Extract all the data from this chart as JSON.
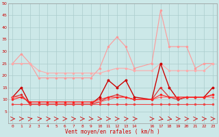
{
  "xlabel": "Vent moyen/en rafales ( km/h )",
  "xlim": [
    -0.5,
    23.5
  ],
  "ylim": [
    0,
    50
  ],
  "yticks": [
    5,
    10,
    15,
    20,
    25,
    30,
    35,
    40,
    45,
    50
  ],
  "xtick_pos": [
    0,
    1,
    2,
    3,
    4,
    5,
    6,
    7,
    8,
    9,
    10,
    11,
    12,
    13,
    14,
    16,
    17,
    18,
    19,
    20,
    21,
    22,
    23
  ],
  "xtick_labels": [
    "0",
    "1",
    "2",
    "3",
    "4",
    "5",
    "6",
    "7",
    "8",
    "9",
    "10",
    "11",
    "12",
    "13",
    "14",
    "16",
    "17",
    "18",
    "19",
    "20",
    "21",
    "22",
    "23"
  ],
  "background_color": "#cce8e8",
  "grid_color": "#aacccc",
  "series": [
    {
      "x": [
        0,
        1,
        2,
        3,
        4,
        5,
        6,
        7,
        8,
        9,
        10,
        11,
        12,
        13,
        14,
        16,
        17,
        18,
        19,
        20,
        21,
        22,
        23
      ],
      "y": [
        25,
        29,
        25,
        19,
        19,
        19,
        19,
        19,
        19,
        19,
        23,
        32,
        36,
        32,
        23,
        25,
        47,
        32,
        32,
        32,
        23,
        25,
        25
      ],
      "color": "#ff9999",
      "linewidth": 0.8,
      "marker": "o",
      "markersize": 1.5
    },
    {
      "x": [
        0,
        1,
        2,
        3,
        4,
        5,
        6,
        7,
        8,
        9,
        10,
        11,
        12,
        13,
        14,
        16,
        17,
        18,
        19,
        20,
        21,
        22,
        23
      ],
      "y": [
        25,
        25,
        25,
        22,
        21,
        21,
        21,
        21,
        21,
        21,
        21,
        22,
        23,
        23,
        22,
        22,
        25,
        22,
        22,
        22,
        22,
        22,
        25
      ],
      "color": "#ffaaaa",
      "linewidth": 0.8,
      "marker": "o",
      "markersize": 1.5
    },
    {
      "x": [
        0,
        1,
        2,
        3,
        4,
        5,
        6,
        7,
        8,
        9,
        10,
        11,
        12,
        13,
        14,
        16,
        17,
        18,
        19,
        20,
        21,
        22,
        23
      ],
      "y": [
        11,
        15,
        8,
        8,
        8,
        8,
        8,
        8,
        8,
        8,
        11,
        18,
        15,
        18,
        11,
        10,
        25,
        15,
        10,
        11,
        11,
        11,
        15
      ],
      "color": "#cc0000",
      "linewidth": 1.0,
      "marker": "o",
      "markersize": 1.8
    },
    {
      "x": [
        0,
        1,
        2,
        3,
        4,
        5,
        6,
        7,
        8,
        9,
        10,
        11,
        12,
        13,
        14,
        16,
        17,
        18,
        19,
        20,
        21,
        22,
        23
      ],
      "y": [
        11,
        12,
        8,
        8,
        8,
        8,
        8,
        8,
        8,
        8,
        9,
        11,
        12,
        11,
        10,
        10,
        15,
        11,
        10,
        11,
        11,
        11,
        12
      ],
      "color": "#dd3333",
      "linewidth": 0.9,
      "marker": "o",
      "markersize": 1.5
    },
    {
      "x": [
        0,
        1,
        2,
        3,
        4,
        5,
        6,
        7,
        8,
        9,
        10,
        11,
        12,
        13,
        14,
        16,
        17,
        18,
        19,
        20,
        21,
        22,
        23
      ],
      "y": [
        11,
        11,
        9,
        9,
        9,
        9,
        9,
        9,
        9,
        9,
        9,
        10,
        11,
        11,
        10,
        10,
        11,
        11,
        11,
        11,
        11,
        11,
        11
      ],
      "color": "#ff5555",
      "linewidth": 0.7,
      "marker": "o",
      "markersize": 1.2
    },
    {
      "x": [
        0,
        1,
        2,
        3,
        4,
        5,
        6,
        7,
        8,
        9,
        10,
        11,
        12,
        13,
        14,
        16,
        17,
        18,
        19,
        20,
        21,
        22,
        23
      ],
      "y": [
        8,
        8,
        8,
        8,
        8,
        8,
        8,
        8,
        8,
        8,
        8,
        8,
        8,
        8,
        8,
        8,
        8,
        8,
        8,
        8,
        8,
        8,
        8
      ],
      "color": "#ee4444",
      "linewidth": 0.8,
      "marker": "o",
      "markersize": 1.5
    },
    {
      "x": [
        0,
        1,
        2,
        3,
        4,
        5,
        6,
        7,
        8,
        9,
        10,
        11,
        12,
        13,
        14,
        16,
        17,
        18,
        19,
        20,
        21,
        22,
        23
      ],
      "y": [
        10,
        11,
        9,
        9,
        9,
        9,
        9,
        9,
        9,
        9,
        10,
        11,
        11,
        11,
        10,
        10,
        12,
        11,
        11,
        11,
        11,
        11,
        12
      ],
      "color": "#ff2222",
      "linewidth": 0.8,
      "marker": "o",
      "markersize": 1.5
    }
  ],
  "arrows_x": [
    0,
    1,
    2,
    3,
    4,
    5,
    6,
    7,
    8,
    9,
    10,
    11,
    12,
    13,
    14,
    16,
    17,
    18,
    19,
    20,
    21,
    22,
    23
  ],
  "arrows_y": [
    2,
    2,
    2,
    2,
    2,
    2,
    2,
    2,
    2,
    2,
    2,
    2,
    2,
    2,
    2,
    2,
    2,
    2,
    2,
    2,
    2,
    2,
    2
  ],
  "arrows_dx": [
    0.3,
    0.3,
    0.3,
    0.4,
    0.4,
    0.3,
    0.3,
    0.3,
    0.3,
    0.3,
    0.3,
    0.3,
    0.3,
    0.35,
    0.35,
    0.3,
    0.35,
    0.35,
    0.3,
    0.3,
    0.3,
    0.3,
    0.3
  ],
  "arrows_dy": [
    0,
    0,
    0.15,
    0.1,
    0,
    0,
    0,
    0,
    0,
    -0.1,
    -0.1,
    -0.05,
    0,
    0.05,
    0,
    0,
    -0.3,
    -0.25,
    0,
    0,
    0,
    0,
    0
  ],
  "arrow_color": "#cc2222"
}
